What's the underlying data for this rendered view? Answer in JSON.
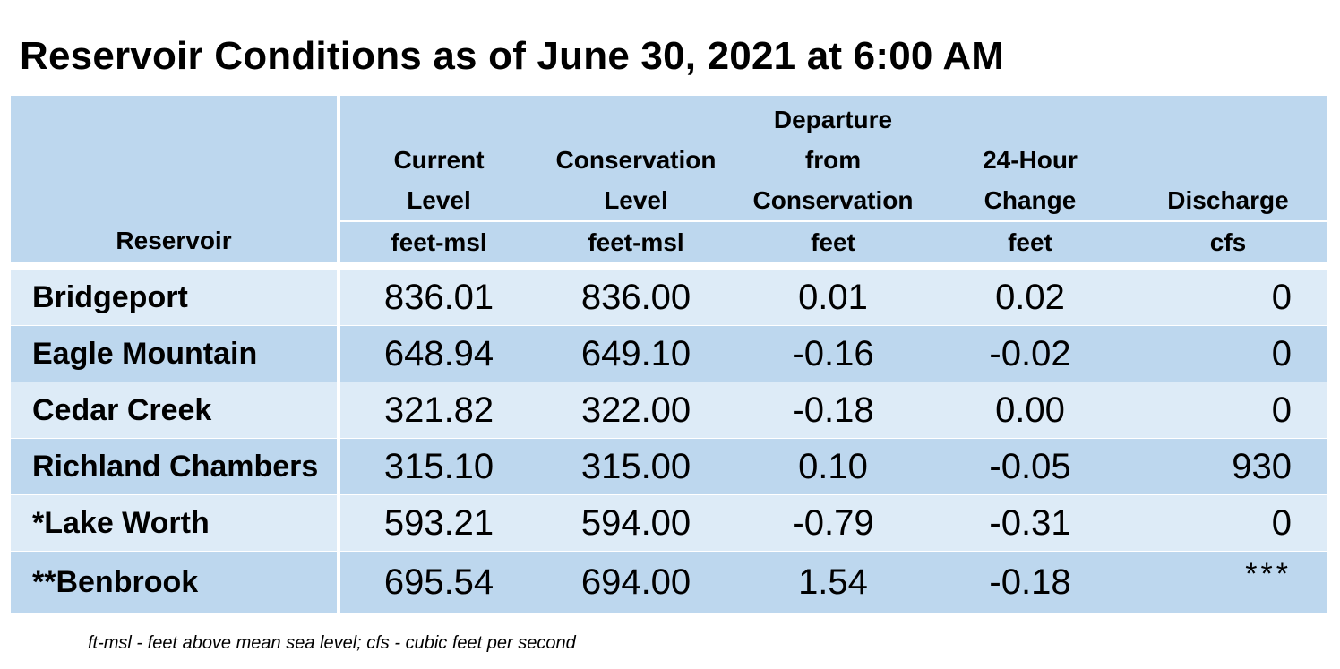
{
  "title": "Reservoir Conditions as of June 30, 2021 at 6:00 AM",
  "header": {
    "reservoir": "Reservoir",
    "columns": [
      {
        "line1": "",
        "line2": "Current",
        "line3": "Level",
        "unit": "feet-msl"
      },
      {
        "line1": "",
        "line2": "Conservation",
        "line3": "Level",
        "unit": "feet-msl"
      },
      {
        "line1": "Departure",
        "line2": "from",
        "line3": "Conservation",
        "unit": "feet"
      },
      {
        "line1": "",
        "line2": "24-Hour",
        "line3": "Change",
        "unit": "feet"
      },
      {
        "line1": "",
        "line2": "",
        "line3": "Discharge",
        "unit": "cfs"
      }
    ]
  },
  "rows": [
    {
      "name": "Bridgeport",
      "current": "836.01",
      "conservation": "836.00",
      "departure": "0.01",
      "change": "0.02",
      "discharge": "0"
    },
    {
      "name": "Eagle Mountain",
      "current": "648.94",
      "conservation": "649.10",
      "departure": "-0.16",
      "change": "-0.02",
      "discharge": "0"
    },
    {
      "name": "Cedar Creek",
      "current": "321.82",
      "conservation": "322.00",
      "departure": "-0.18",
      "change": "0.00",
      "discharge": "0"
    },
    {
      "name": "Richland Chambers",
      "current": "315.10",
      "conservation": "315.00",
      "departure": "0.10",
      "change": "-0.05",
      "discharge": "930"
    },
    {
      "name": "*Lake Worth",
      "current": "593.21",
      "conservation": "594.00",
      "departure": "-0.79",
      "change": "-0.31",
      "discharge": "0"
    },
    {
      "name": "**Benbrook",
      "current": "695.54",
      "conservation": "694.00",
      "departure": "1.54",
      "change": "-0.18",
      "discharge": "***"
    }
  ],
  "footnote": "ft-msl - feet above mean sea level; cfs - cubic feet per second",
  "colors": {
    "header_bg": "#bdd7ee",
    "row_light": "#ddebf7",
    "row_dark": "#bdd7ee"
  }
}
